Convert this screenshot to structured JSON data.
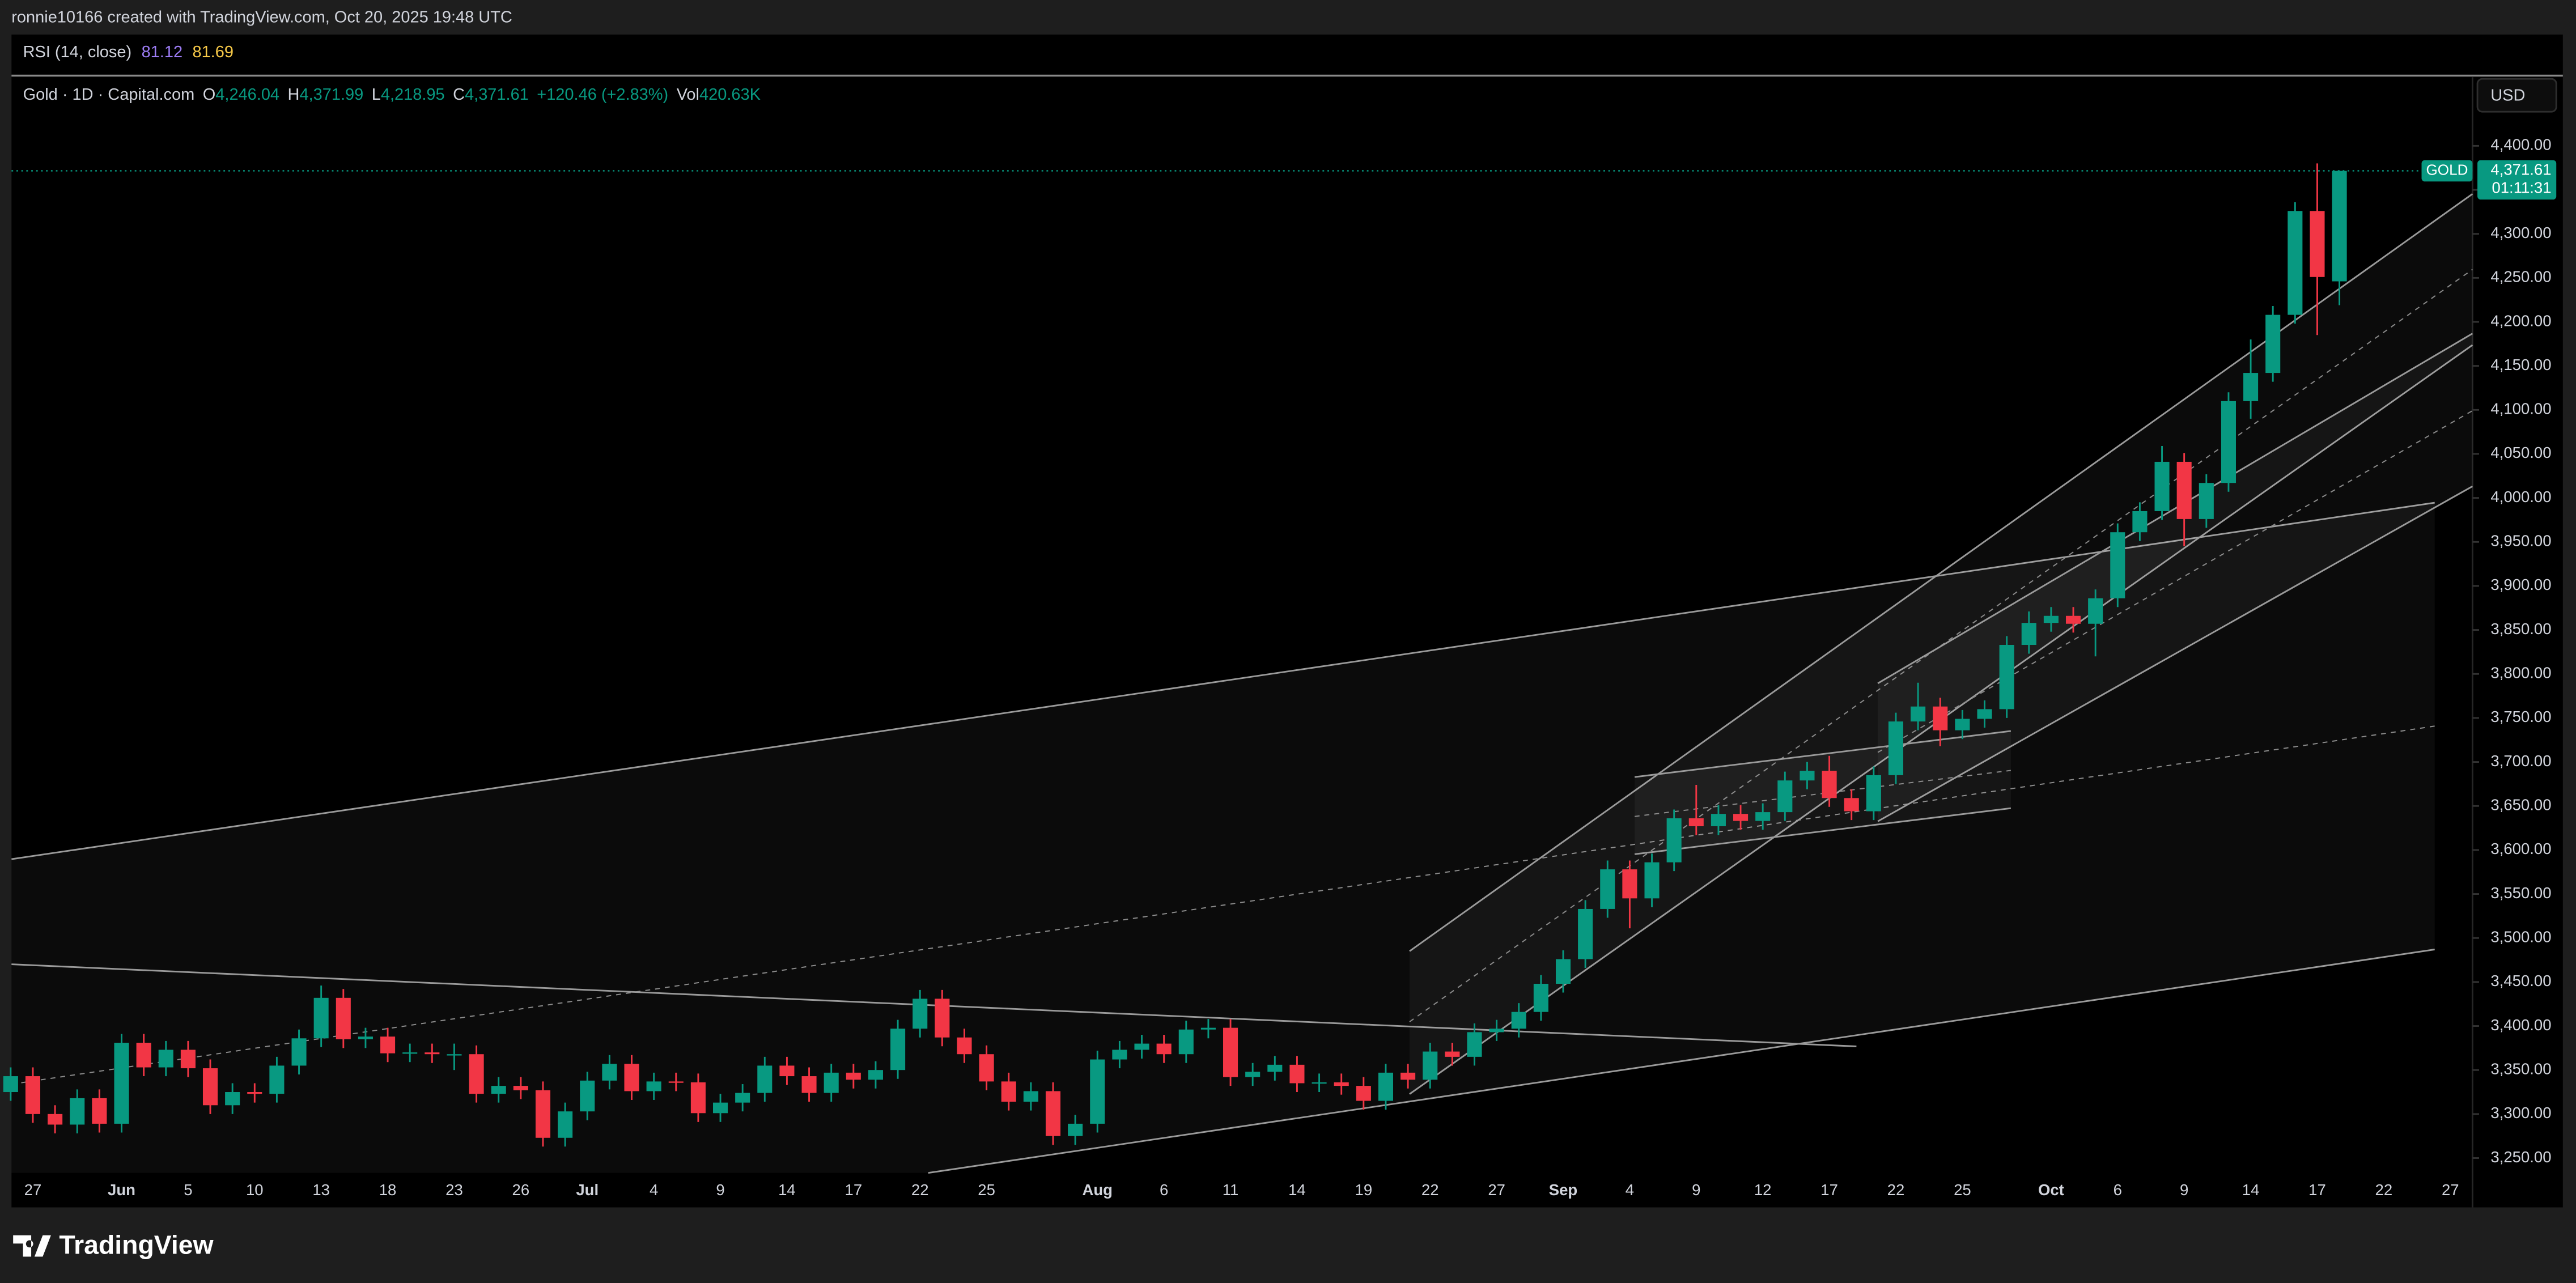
{
  "header": {
    "credit": "ronnie10166 created with TradingView.com, Oct 20, 2025 19:48 UTC"
  },
  "rsi": {
    "title": "RSI (14, close)",
    "value1": 81.12,
    "value2": 81.69
  },
  "legend": {
    "symbol": "Gold · 1D · Capital.com",
    "o_key": "O",
    "o": "4,246.04",
    "h_key": "H",
    "h": "4,371.99",
    "l_key": "L",
    "l": "4,218.95",
    "c_key": "C",
    "c": "4,371.61",
    "change": "+120.46 (+2.83%)",
    "vol_key": "Vol",
    "vol": "420.63K"
  },
  "currency": "USD",
  "brand": "TradingView",
  "chart_data": {
    "type": "candlestick",
    "up_color": "#089981",
    "down_color": "#f23645",
    "symbol_tag": "GOLD",
    "price_label": "4,371.61",
    "countdown": "01:11:31",
    "categories": [
      null,
      "27",
      null,
      null,
      null,
      "Jun",
      null,
      null,
      "5",
      null,
      null,
      "10",
      null,
      null,
      "13",
      null,
      null,
      "18",
      null,
      null,
      "23",
      null,
      null,
      "26",
      null,
      null,
      "Jul",
      null,
      null,
      "4",
      null,
      null,
      "9",
      null,
      null,
      "14",
      null,
      null,
      "17",
      null,
      null,
      "22",
      null,
      null,
      "25",
      null,
      null,
      null,
      null,
      "Aug",
      null,
      null,
      "6",
      null,
      null,
      "11",
      null,
      null,
      "14",
      null,
      null,
      "19",
      null,
      null,
      "22",
      null,
      null,
      "27",
      null,
      null,
      "Sep",
      null,
      null,
      "4",
      null,
      null,
      "9",
      null,
      null,
      "12",
      null,
      null,
      "17",
      null,
      null,
      "22",
      null,
      null,
      "25",
      null,
      null,
      null,
      "Oct",
      null,
      null,
      "6",
      null,
      null,
      "9",
      null,
      null,
      "14",
      null,
      null,
      "17",
      null,
      null,
      "22",
      null,
      null,
      "27"
    ],
    "open": [
      3325,
      3343,
      3300,
      3288,
      3318,
      3289,
      3381,
      3353,
      3373,
      3352,
      3310,
      3325,
      3323,
      3355,
      3386,
      3432,
      3385,
      3388,
      3369,
      3370,
      3368,
      3368,
      3323,
      3332,
      3327,
      3273,
      3303,
      3338,
      3357,
      3326,
      3337,
      3336,
      3301,
      3313,
      3324,
      3355,
      3343,
      3324,
      3347,
      3339,
      3350,
      3397,
      3431,
      3387,
      3368,
      3337,
      3314,
      3326,
      3275,
      3289,
      3362,
      3373,
      3380,
      3368,
      3396,
      3398,
      3342,
      3348,
      3356,
      3335,
      3336,
      3332,
      3315,
      3347,
      3339,
      3371,
      3365,
      3393,
      3397,
      3416,
      3448,
      3476,
      3533,
      3578,
      3545,
      3586,
      3636,
      3627,
      3641,
      3633,
      3643,
      3679,
      3690,
      3659,
      3644,
      3685,
      3746,
      3763,
      3736,
      3749,
      3760,
      3833,
      3858,
      3866,
      3857,
      3886,
      3961,
      3985,
      4041,
      3976,
      4017,
      4110,
      4142,
      4208,
      4326,
      4246.04,
      null,
      null,
      null,
      null,
      null
    ],
    "high": [
      3353,
      3353,
      3310,
      3328,
      3328,
      3391,
      3391,
      3383,
      3383,
      3362,
      3335,
      3335,
      3365,
      3396,
      3446,
      3442,
      3398,
      3398,
      3380,
      3380,
      3380,
      3378,
      3342,
      3342,
      3337,
      3313,
      3348,
      3367,
      3367,
      3347,
      3347,
      3346,
      3323,
      3334,
      3365,
      3365,
      3353,
      3357,
      3357,
      3360,
      3407,
      3441,
      3441,
      3397,
      3378,
      3347,
      3336,
      3336,
      3299,
      3372,
      3383,
      3390,
      3390,
      3406,
      3408,
      3408,
      3358,
      3366,
      3366,
      3346,
      3346,
      3342,
      3357,
      3357,
      3381,
      3381,
      3403,
      3407,
      3426,
      3458,
      3486,
      3543,
      3588,
      3588,
      3596,
      3646,
      3674,
      3651,
      3651,
      3653,
      3689,
      3700,
      3707,
      3669,
      3695,
      3756,
      3790,
      3773,
      3759,
      3770,
      3843,
      3871,
      3876,
      3876,
      3896,
      3971,
      3995,
      4059,
      4051,
      4027,
      4120,
      4180,
      4218,
      4336,
      4380,
      4371.99,
      null,
      null,
      null,
      null,
      null
    ],
    "low": [
      3315,
      3290,
      3278,
      3278,
      3279,
      3279,
      3343,
      3343,
      3342,
      3300,
      3300,
      3313,
      3313,
      3345,
      3376,
      3375,
      3375,
      3359,
      3359,
      3358,
      3350,
      3313,
      3313,
      3317,
      3263,
      3263,
      3293,
      3328,
      3316,
      3316,
      3326,
      3291,
      3291,
      3303,
      3314,
      3333,
      3314,
      3314,
      3329,
      3329,
      3340,
      3387,
      3377,
      3358,
      3327,
      3304,
      3304,
      3265,
      3265,
      3279,
      3352,
      3363,
      3358,
      3358,
      3386,
      3332,
      3332,
      3338,
      3325,
      3325,
      3322,
      3305,
      3305,
      3329,
      3329,
      3355,
      3355,
      3383,
      3387,
      3406,
      3438,
      3466,
      3523,
      3511,
      3535,
      3576,
      3617,
      3617,
      3623,
      3623,
      3633,
      3669,
      3649,
      3634,
      3634,
      3675,
      3736,
      3718,
      3726,
      3739,
      3750,
      3823,
      3848,
      3847,
      3820,
      3876,
      3951,
      3975,
      3945,
      3966,
      4007,
      4090,
      4132,
      4198,
      4185,
      4218.95,
      null,
      null,
      null,
      null,
      null
    ],
    "close": [
      3343,
      3300,
      3288,
      3318,
      3289,
      3381,
      3353,
      3373,
      3352,
      3310,
      3325,
      3323,
      3355,
      3386,
      3432,
      3385,
      3388,
      3369,
      3370,
      3368,
      3368,
      3323,
      3332,
      3327,
      3273,
      3303,
      3338,
      3357,
      3326,
      3337,
      3336,
      3301,
      3313,
      3324,
      3355,
      3343,
      3324,
      3347,
      3339,
      3350,
      3397,
      3431,
      3387,
      3368,
      3337,
      3314,
      3326,
      3275,
      3289,
      3362,
      3373,
      3380,
      3368,
      3396,
      3398,
      3342,
      3348,
      3356,
      3335,
      3336,
      3332,
      3315,
      3347,
      3339,
      3371,
      3365,
      3393,
      3397,
      3416,
      3448,
      3476,
      3533,
      3578,
      3545,
      3586,
      3636,
      3627,
      3641,
      3633,
      3643,
      3679,
      3690,
      3659,
      3644,
      3685,
      3746,
      3763,
      3736,
      3749,
      3760,
      3833,
      3858,
      3866,
      3857,
      3886,
      3961,
      3985,
      4041,
      3976,
      4017,
      4110,
      4142,
      4208,
      4326,
      4251,
      4371.61,
      null,
      null,
      null,
      null,
      null
    ],
    "ylim": [
      3235,
      4435
    ],
    "yticks": [
      {
        "value": 3250,
        "label": "3,250.00"
      },
      {
        "value": 3300,
        "label": "3,300.00"
      },
      {
        "value": 3350,
        "label": "3,350.00"
      },
      {
        "value": 3400,
        "label": "3,400.00"
      },
      {
        "value": 3450,
        "label": "3,450.00"
      },
      {
        "value": 3500,
        "label": "3,500.00"
      },
      {
        "value": 3550,
        "label": "3,550.00"
      },
      {
        "value": 3600,
        "label": "3,600.00"
      },
      {
        "value": 3650,
        "label": "3,650.00"
      },
      {
        "value": 3700,
        "label": "3,700.00"
      },
      {
        "value": 3750,
        "label": "3,750.00"
      },
      {
        "value": 3800,
        "label": "3,800.00"
      },
      {
        "value": 3850,
        "label": "3,850.00"
      },
      {
        "value": 3900,
        "label": "3,900.00"
      },
      {
        "value": 3950,
        "label": "3,950.00"
      },
      {
        "value": 4000,
        "label": "4,000.00"
      },
      {
        "value": 4050,
        "label": "4,050.00"
      },
      {
        "value": 4100,
        "label": "4,100.00"
      },
      {
        "value": 4150,
        "label": "4,150.00"
      },
      {
        "value": 4200,
        "label": "4,200.00"
      },
      {
        "value": 4250,
        "label": "4,250.00"
      },
      {
        "value": 4300,
        "label": "4,300.00"
      },
      {
        "value": 4350,
        "label": "4,350.00"
      },
      {
        "value": 4400,
        "label": "4,400.00"
      }
    ],
    "grid": false
  }
}
